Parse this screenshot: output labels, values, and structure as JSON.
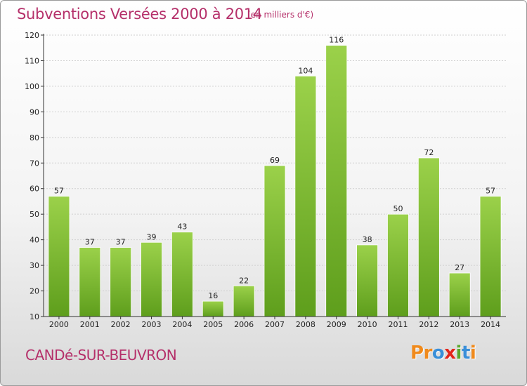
{
  "header": {
    "title": "Subventions Versées 2000 à 2014",
    "subtitle": "(en milliers d'€)"
  },
  "footer": {
    "place": "CANDé-SUR-BEUVRON",
    "logo_letters": [
      "P",
      "r",
      "o",
      "x",
      "i",
      "t",
      "i"
    ],
    "logo_colors": [
      "#f08a1c",
      "#f08a1c",
      "#3a8fd8",
      "#e2261c",
      "#5aa82c",
      "#3a8fd8",
      "#f08a1c"
    ]
  },
  "chart_data": {
    "type": "bar",
    "title": "Subventions Versées 2000 à 2014",
    "subtitle": "(en milliers d'€)",
    "categories": [
      "2000",
      "2001",
      "2002",
      "2003",
      "2004",
      "2005",
      "2006",
      "2007",
      "2008",
      "2009",
      "2010",
      "2011",
      "2012",
      "2013",
      "2014"
    ],
    "values": [
      57,
      37,
      37,
      39,
      43,
      16,
      22,
      69,
      104,
      116,
      38,
      50,
      72,
      27,
      57
    ],
    "ylim": [
      10,
      120
    ],
    "yticks": [
      10,
      20,
      30,
      40,
      50,
      60,
      70,
      80,
      90,
      100,
      110,
      120
    ],
    "grid": true,
    "bar_color_top": "#9bd14a",
    "bar_color_bottom": "#5e9e1c"
  }
}
